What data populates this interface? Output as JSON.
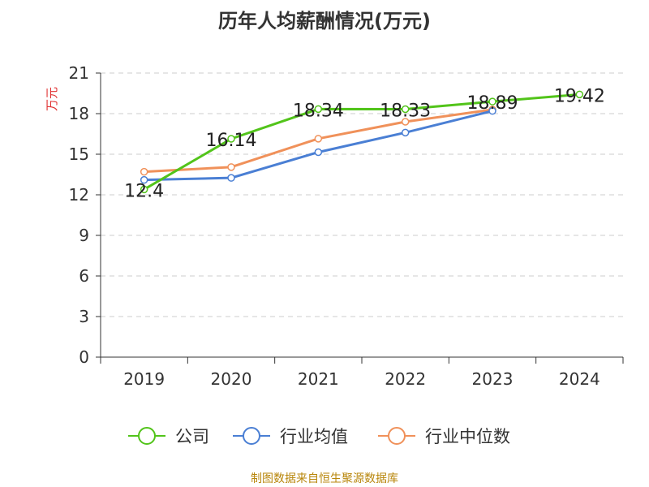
{
  "chart_data": {
    "type": "line",
    "title": "历年人均薪酬情况(万元)",
    "ylabel": "万元",
    "xlabel": "",
    "categories": [
      "2019",
      "2020",
      "2021",
      "2022",
      "2023",
      "2024"
    ],
    "ylim": [
      0,
      21
    ],
    "yticks": [
      0,
      3,
      6,
      9,
      12,
      15,
      18,
      21
    ],
    "grid": true,
    "legend_position": "bottom",
    "series": [
      {
        "name": "公司",
        "color": "#52c41a",
        "values": [
          12.4,
          16.14,
          18.34,
          18.33,
          18.89,
          19.42
        ],
        "labels": [
          "12.4",
          "16.14",
          "18.34",
          "18.33",
          "18.89",
          "19.42"
        ]
      },
      {
        "name": "行业均值",
        "color": "#4a7fd4",
        "values": [
          13.1,
          13.25,
          15.15,
          16.6,
          18.2,
          null
        ]
      },
      {
        "name": "行业中位数",
        "color": "#f0915a",
        "values": [
          13.7,
          14.05,
          16.15,
          17.4,
          18.3,
          null
        ]
      }
    ]
  },
  "footer": "制图数据来自恒生聚源数据库"
}
